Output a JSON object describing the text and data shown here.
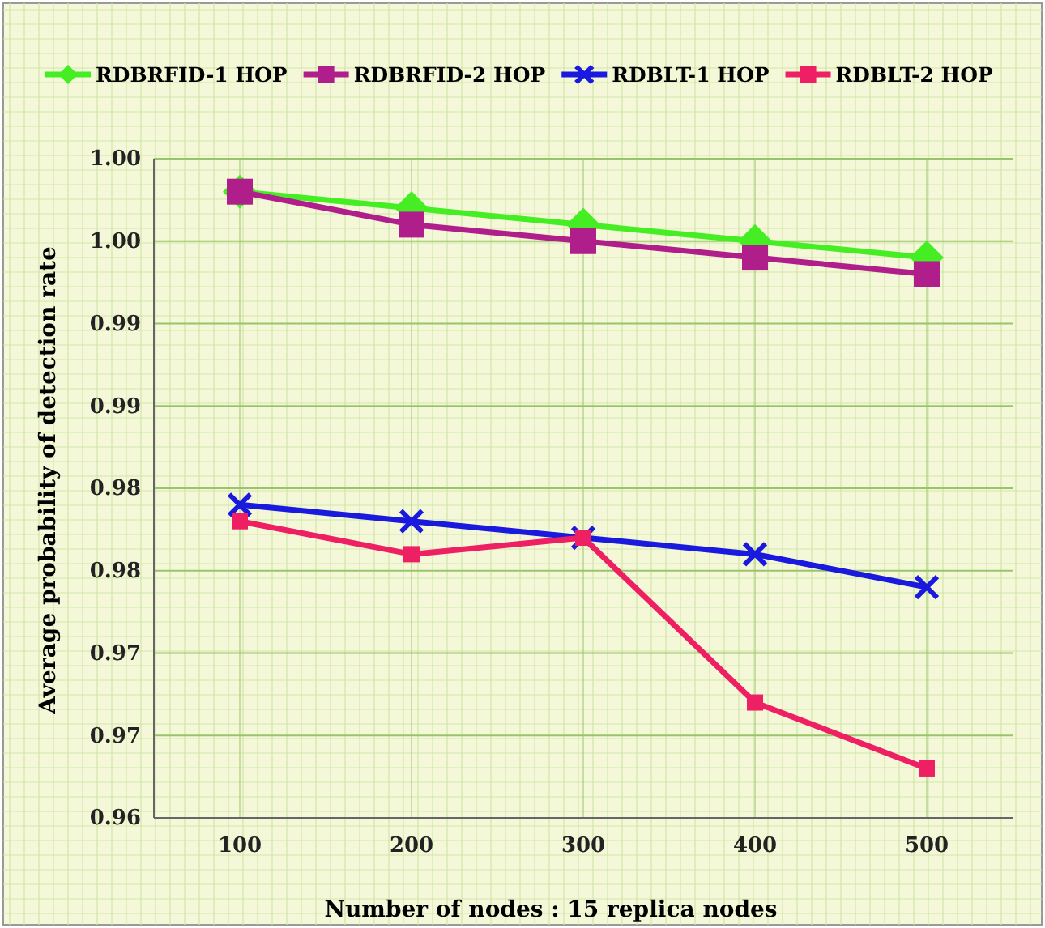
{
  "chart_data": {
    "type": "line",
    "xlabel": "Number of nodes : 15 replica nodes",
    "ylabel": "Average probability of detection rate",
    "categories": [
      "100",
      "200",
      "300",
      "400",
      "500"
    ],
    "ylim": [
      0.96,
      1.0
    ],
    "yticks": [
      {
        "value": 0.96,
        "label": "0.96"
      },
      {
        "value": 0.965,
        "label": "0.97"
      },
      {
        "value": 0.97,
        "label": "0.97"
      },
      {
        "value": 0.975,
        "label": "0.98"
      },
      {
        "value": 0.98,
        "label": "0.98"
      },
      {
        "value": 0.985,
        "label": "0.99"
      },
      {
        "value": 0.99,
        "label": "0.99"
      },
      {
        "value": 0.995,
        "label": "1.00"
      },
      {
        "value": 1.0,
        "label": "1.00"
      }
    ],
    "grid": true,
    "legend": "top",
    "series": [
      {
        "name": "RDBRFID-1 HOP",
        "color": "#44ee22",
        "marker": "diamond",
        "values": [
          0.998,
          0.997,
          0.996,
          0.995,
          0.994
        ]
      },
      {
        "name": "RDBRFID-2 HOP",
        "color": "#b01e8c",
        "marker": "square",
        "values": [
          0.998,
          0.996,
          0.995,
          0.994,
          0.993
        ]
      },
      {
        "name": "RDBLT-1 HOP",
        "color": "#1a1adf",
        "marker": "cross",
        "values": [
          0.979,
          0.978,
          0.977,
          0.976,
          0.974
        ]
      },
      {
        "name": "RDBLT-2 HOP",
        "color": "#ee1f63",
        "marker": "square",
        "values": [
          0.978,
          0.976,
          0.977,
          0.967,
          0.963
        ]
      }
    ]
  }
}
